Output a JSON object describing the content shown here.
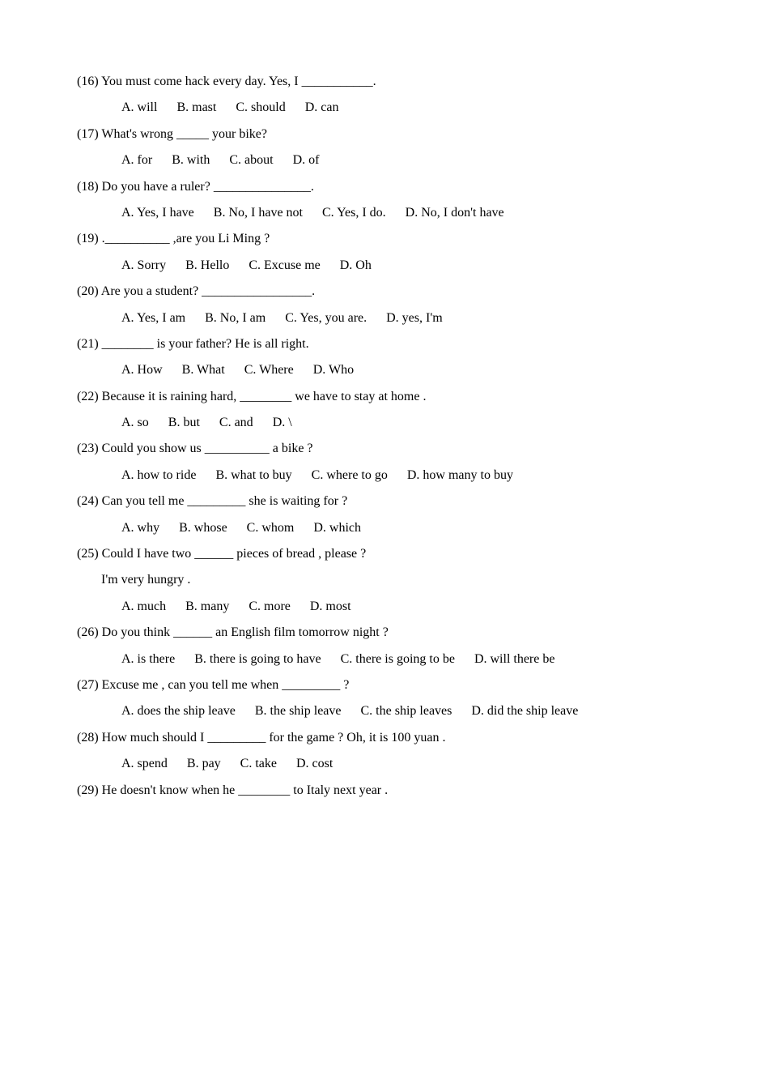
{
  "questions": [
    {
      "num": "(16)",
      "text": "You must come hack every day.     Yes, I ___________.",
      "options": [
        {
          "label": "A. will"
        },
        {
          "label": "B. mast"
        },
        {
          "label": "C. should"
        },
        {
          "label": "D. can"
        }
      ]
    },
    {
      "num": "(17)",
      "text": "What's wrong _____ your bike?",
      "options": [
        {
          "label": "A. for"
        },
        {
          "label": "B. with"
        },
        {
          "label": "C. about"
        },
        {
          "label": "D. of"
        }
      ]
    },
    {
      "num": "(18)",
      "text": "Do you have a ruler?   _______________.",
      "options": [
        {
          "label": "A.   Yes, I have"
        },
        {
          "label": "B. No, I have not"
        },
        {
          "label": "C. Yes, I do."
        },
        {
          "label": "D. No, I don't have"
        }
      ]
    },
    {
      "num": "(19)",
      "text": ".__________ ,are you Li Ming ?",
      "options": [
        {
          "label": "A. Sorry"
        },
        {
          "label": "B. Hello"
        },
        {
          "label": "C. Excuse me"
        },
        {
          "label": "D. Oh"
        }
      ]
    },
    {
      "num": "(20)",
      "text": "Are you a student?      _________________.",
      "options": [
        {
          "label": "A. Yes, I am"
        },
        {
          "label": "B. No, I am"
        },
        {
          "label": "C. Yes, you are."
        },
        {
          "label": "D. yes, I'm"
        }
      ]
    },
    {
      "num": "(21)",
      "text": "________ is your father?    He is all right.",
      "options": [
        {
          "label": "A. How"
        },
        {
          "label": "B. What"
        },
        {
          "label": "C. Where"
        },
        {
          "label": "D. Who"
        }
      ]
    },
    {
      "num": "(22)",
      "text": " Because it is raining hard, ________ we have to stay at home .",
      "options": [
        {
          "label": "A. so"
        },
        {
          "label": "B. but"
        },
        {
          "label": "C. and"
        },
        {
          "label": "D. \\"
        }
      ]
    },
    {
      "num": "(23)",
      "text": "Could you show us __________ a bike ?",
      "options": [
        {
          "label": "A. how to ride"
        },
        {
          "label": "B. what to buy"
        },
        {
          "label": "C. where to go"
        },
        {
          "label": "D. how many to buy"
        }
      ]
    },
    {
      "num": "(24)",
      "text": "Can you tell me _________ she is waiting for ?",
      "options": [
        {
          "label": "A. why"
        },
        {
          "label": "B. whose"
        },
        {
          "label": "C. whom"
        },
        {
          "label": "D. which"
        }
      ]
    },
    {
      "num": "(25)",
      "text": "Could I have two ______ pieces of bread , please ?",
      "continuation": "I'm very hungry .",
      "options": [
        {
          "label": "A. much"
        },
        {
          "label": "B. many"
        },
        {
          "label": "C. more"
        },
        {
          "label": "D. most"
        }
      ]
    },
    {
      "num": "(26)",
      "text": "Do you think ______ an English film tomorrow night ?",
      "options": [
        {
          "label": "A. is there"
        },
        {
          "label": "B. there is going to have"
        },
        {
          "label": "C. there is going to be"
        },
        {
          "label": "D. will there be"
        }
      ]
    },
    {
      "num": "(27)",
      "text": "Excuse me , can you tell me when _________ ?",
      "options": [
        {
          "label": "A. does the ship leave"
        },
        {
          "label": "B. the ship leave"
        },
        {
          "label": "C. the ship leaves"
        },
        {
          "label": "D. did the ship leave"
        }
      ]
    },
    {
      "num": "(28)",
      "text": "How much should I _________ for the game ?    Oh, it is 100 yuan .",
      "options": [
        {
          "label": "A. spend"
        },
        {
          "label": "B. pay"
        },
        {
          "label": "C. take"
        },
        {
          "label": "D. cost"
        }
      ]
    },
    {
      "num": "(29)",
      "text": "He doesn't know when he ________ to Italy next year .",
      "options": []
    }
  ]
}
